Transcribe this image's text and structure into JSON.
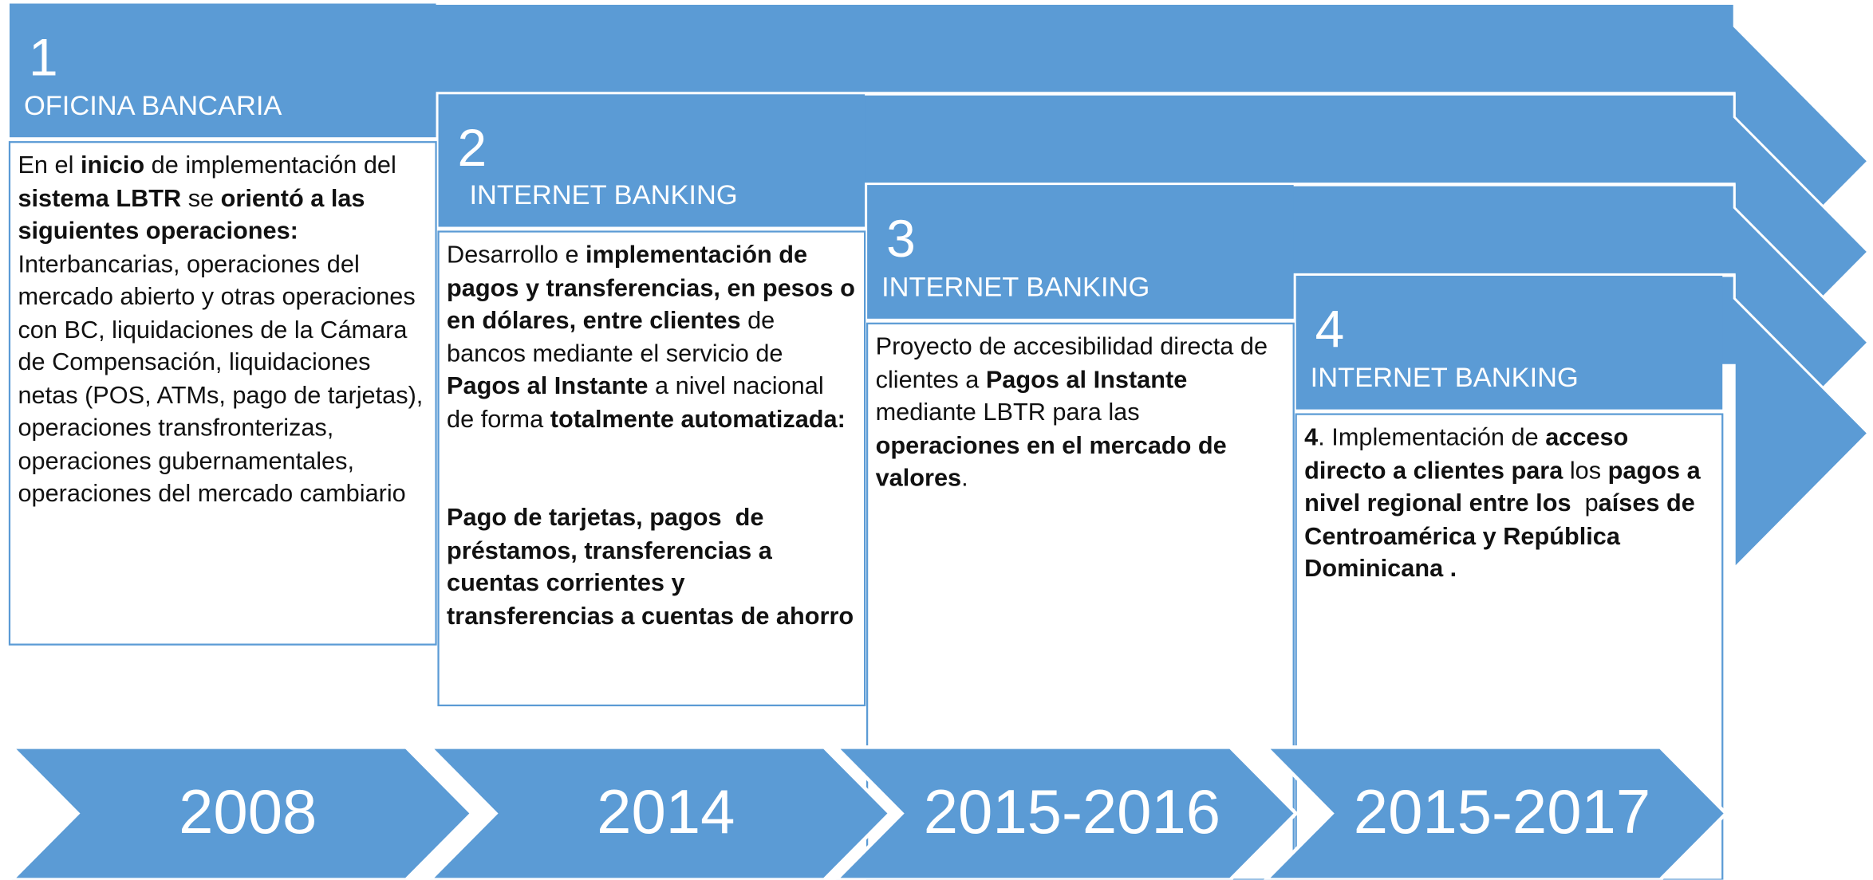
{
  "steps": [
    {
      "number": "1",
      "title": "OFICINA BANCARIA",
      "year": "2008",
      "body": [
        [
          {
            "text": "En el ",
            "bold": false
          },
          {
            "text": "inicio",
            "bold": true
          },
          {
            "text": " de implementación del ",
            "bold": false
          },
          {
            "text": "sistema LBTR",
            "bold": true
          },
          {
            "text": " se ",
            "bold": false
          },
          {
            "text": "orientó a las siguientes operaciones:",
            "bold": true
          }
        ],
        [
          {
            "text": "Interbancarias, operaciones del mercado abierto y otras operaciones con BC, liquidaciones de la Cámara de Compensación, liquidaciones netas (POS, ATMs, pago de tarjetas), operaciones transfronterizas, operaciones gubernamentales, operaciones del mercado cambiario",
            "bold": false
          }
        ]
      ]
    },
    {
      "number": "2",
      "title": "INTERNET BANKING",
      "year": "2014",
      "body": [
        [
          {
            "text": "Desarrollo e ",
            "bold": false
          },
          {
            "text": "implementación de pagos y transferencias, en pesos o en dólares, entre clientes",
            "bold": true
          },
          {
            "text": " de bancos mediante el servicio de ",
            "bold": false
          },
          {
            "text": "Pagos al Instante",
            "bold": true
          },
          {
            "text": " a nivel nacional de forma ",
            "bold": false
          },
          {
            "text": "totalmente automatizada:",
            "bold": true
          }
        ],
        [
          {
            "text": "Pago de tarjetas, pagos  de préstamos, transferencias a cuentas corrientes y transferencias a cuentas de ahorro",
            "bold": true
          }
        ]
      ]
    },
    {
      "number": "3",
      "title": "INTERNET BANKING",
      "year": "2015-2016",
      "body": [
        [
          {
            "text": "Proyecto de accesibilidad directa de clientes a ",
            "bold": false
          },
          {
            "text": "Pagos al Instante",
            "bold": true
          },
          {
            "text": " mediante LBTR para las ",
            "bold": false
          },
          {
            "text": "operaciones en el mercado de valores",
            "bold": true
          },
          {
            "text": ".",
            "bold": false
          }
        ]
      ]
    },
    {
      "number": "4",
      "title": "INTERNET BANKING",
      "year": "2015-2017",
      "body": [
        [
          {
            "text": "4",
            "bold": true
          },
          {
            "text": ". Implementación de ",
            "bold": false
          },
          {
            "text": "acceso directo a clientes para",
            "bold": true
          },
          {
            "text": " los ",
            "bold": false
          },
          {
            "text": "pagos a nivel regional entre los  ",
            "bold": true
          },
          {
            "text": "p",
            "bold": false
          },
          {
            "text": "aíses de Centroamérica y República Dominicana .",
            "bold": true
          }
        ]
      ]
    }
  ]
}
